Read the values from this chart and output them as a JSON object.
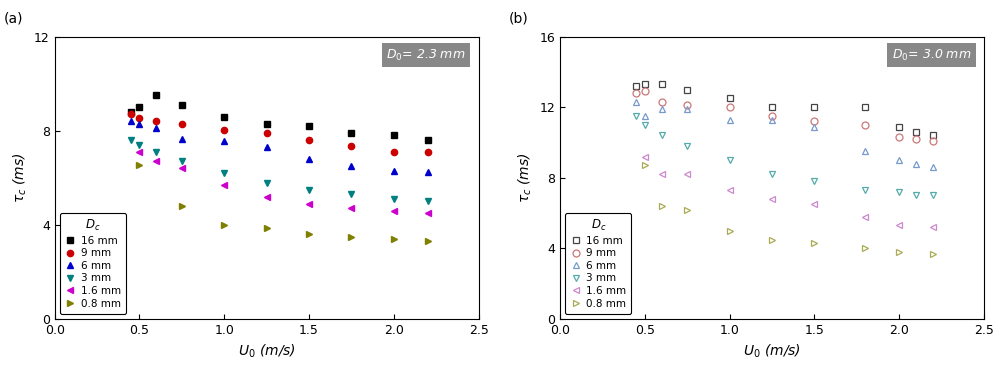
{
  "panel_a": {
    "title_parts": [
      "$D$",
      "= 2.3 mm"
    ],
    "title_sub": "0",
    "series": [
      {
        "label": "16 mm",
        "color": "black",
        "marker": "s",
        "filled": true,
        "x": [
          0.45,
          0.5,
          0.6,
          0.75,
          1.0,
          1.25,
          1.5,
          1.75,
          2.0,
          2.2
        ],
        "y": [
          8.8,
          9.0,
          9.5,
          9.1,
          8.6,
          8.3,
          8.2,
          7.9,
          7.8,
          7.6
        ]
      },
      {
        "label": "9 mm",
        "color": "#cc0000",
        "marker": "o",
        "filled": true,
        "x": [
          0.45,
          0.5,
          0.6,
          0.75,
          1.0,
          1.25,
          1.5,
          1.75,
          2.0,
          2.2
        ],
        "y": [
          8.7,
          8.55,
          8.4,
          8.3,
          8.05,
          7.9,
          7.6,
          7.35,
          7.1,
          7.1
        ]
      },
      {
        "label": "6 mm",
        "color": "#0000cc",
        "marker": "^",
        "filled": true,
        "x": [
          0.45,
          0.5,
          0.6,
          0.75,
          1.0,
          1.25,
          1.5,
          1.75,
          2.0,
          2.2
        ],
        "y": [
          8.4,
          8.3,
          8.1,
          7.65,
          7.55,
          7.3,
          6.8,
          6.5,
          6.3,
          6.25
        ]
      },
      {
        "label": "3 mm",
        "color": "#008080",
        "marker": "v",
        "filled": true,
        "x": [
          0.45,
          0.5,
          0.6,
          0.75,
          1.0,
          1.25,
          1.5,
          1.75,
          2.0,
          2.2
        ],
        "y": [
          7.6,
          7.4,
          7.1,
          6.7,
          6.2,
          5.8,
          5.5,
          5.3,
          5.1,
          5.0
        ]
      },
      {
        "label": "1.6 mm",
        "color": "#cc00cc",
        "marker": "<",
        "filled": true,
        "x": [
          0.5,
          0.6,
          0.75,
          1.0,
          1.25,
          1.5,
          1.75,
          2.0,
          2.2
        ],
        "y": [
          7.1,
          6.7,
          6.4,
          5.7,
          5.2,
          4.9,
          4.7,
          4.6,
          4.5
        ]
      },
      {
        "label": "0.8 mm",
        "color": "#808000",
        "marker": ">",
        "filled": true,
        "x": [
          0.5,
          0.75,
          1.0,
          1.25,
          1.5,
          1.75,
          2.0,
          2.2
        ],
        "y": [
          6.55,
          4.8,
          4.0,
          3.85,
          3.6,
          3.5,
          3.4,
          3.3
        ]
      }
    ],
    "xlim": [
      0.0,
      2.5
    ],
    "ylim": [
      0,
      12
    ],
    "xlabel": "$U_0$ (m/s)",
    "ylabel": "$\\tau_c$ (ms)",
    "yticks": [
      0,
      4,
      8,
      12
    ],
    "xticks": [
      0.0,
      0.5,
      1.0,
      1.5,
      2.0,
      2.5
    ]
  },
  "panel_b": {
    "title_parts": [
      "$D$",
      "= 3.0 mm"
    ],
    "title_sub": "0",
    "series": [
      {
        "label": "16 mm",
        "color": "#444444",
        "marker": "s",
        "filled": false,
        "x": [
          0.45,
          0.5,
          0.6,
          0.75,
          1.0,
          1.25,
          1.5,
          1.8,
          2.0,
          2.1,
          2.2
        ],
        "y": [
          13.2,
          13.3,
          13.3,
          13.0,
          12.5,
          12.0,
          12.0,
          12.0,
          10.9,
          10.6,
          10.4
        ]
      },
      {
        "label": "9 mm",
        "color": "#cc7777",
        "marker": "o",
        "filled": false,
        "x": [
          0.45,
          0.5,
          0.6,
          0.75,
          1.0,
          1.25,
          1.5,
          1.8,
          2.0,
          2.1,
          2.2
        ],
        "y": [
          12.8,
          12.9,
          12.3,
          12.1,
          12.0,
          11.5,
          11.2,
          11.0,
          10.3,
          10.2,
          10.1
        ]
      },
      {
        "label": "6 mm",
        "color": "#7799cc",
        "marker": "^",
        "filled": false,
        "x": [
          0.45,
          0.5,
          0.6,
          0.75,
          1.0,
          1.25,
          1.5,
          1.8,
          2.0,
          2.1,
          2.2
        ],
        "y": [
          12.3,
          11.5,
          11.9,
          11.9,
          11.3,
          11.3,
          10.9,
          9.5,
          9.0,
          8.8,
          8.6
        ]
      },
      {
        "label": "3 mm",
        "color": "#55aaaa",
        "marker": "v",
        "filled": false,
        "x": [
          0.45,
          0.5,
          0.6,
          0.75,
          1.0,
          1.25,
          1.5,
          1.8,
          2.0,
          2.1,
          2.2
        ],
        "y": [
          11.5,
          11.0,
          10.4,
          9.8,
          9.0,
          8.2,
          7.8,
          7.3,
          7.2,
          7.0,
          7.0
        ]
      },
      {
        "label": "1.6 mm",
        "color": "#cc88cc",
        "marker": "<",
        "filled": false,
        "x": [
          0.5,
          0.6,
          0.75,
          1.0,
          1.25,
          1.5,
          1.8,
          2.0,
          2.2
        ],
        "y": [
          9.2,
          8.2,
          8.2,
          7.3,
          6.8,
          6.5,
          5.8,
          5.3,
          5.2
        ]
      },
      {
        "label": "0.8 mm",
        "color": "#aaaa55",
        "marker": ">",
        "filled": false,
        "x": [
          0.5,
          0.6,
          0.75,
          1.0,
          1.25,
          1.5,
          1.8,
          2.0,
          2.2
        ],
        "y": [
          8.7,
          6.4,
          6.2,
          5.0,
          4.5,
          4.3,
          4.0,
          3.8,
          3.7
        ]
      }
    ],
    "xlim": [
      0.0,
      2.5
    ],
    "ylim": [
      0,
      16
    ],
    "xlabel": "$U_0$ (m/s)",
    "ylabel": "$\\tau_c$ (ms)",
    "yticks": [
      0,
      4,
      8,
      12,
      16
    ],
    "xticks": [
      0.0,
      0.5,
      1.0,
      1.5,
      2.0,
      2.5
    ]
  },
  "legend_title": "$D_c$",
  "panel_labels": [
    "(a)",
    "(b)"
  ]
}
